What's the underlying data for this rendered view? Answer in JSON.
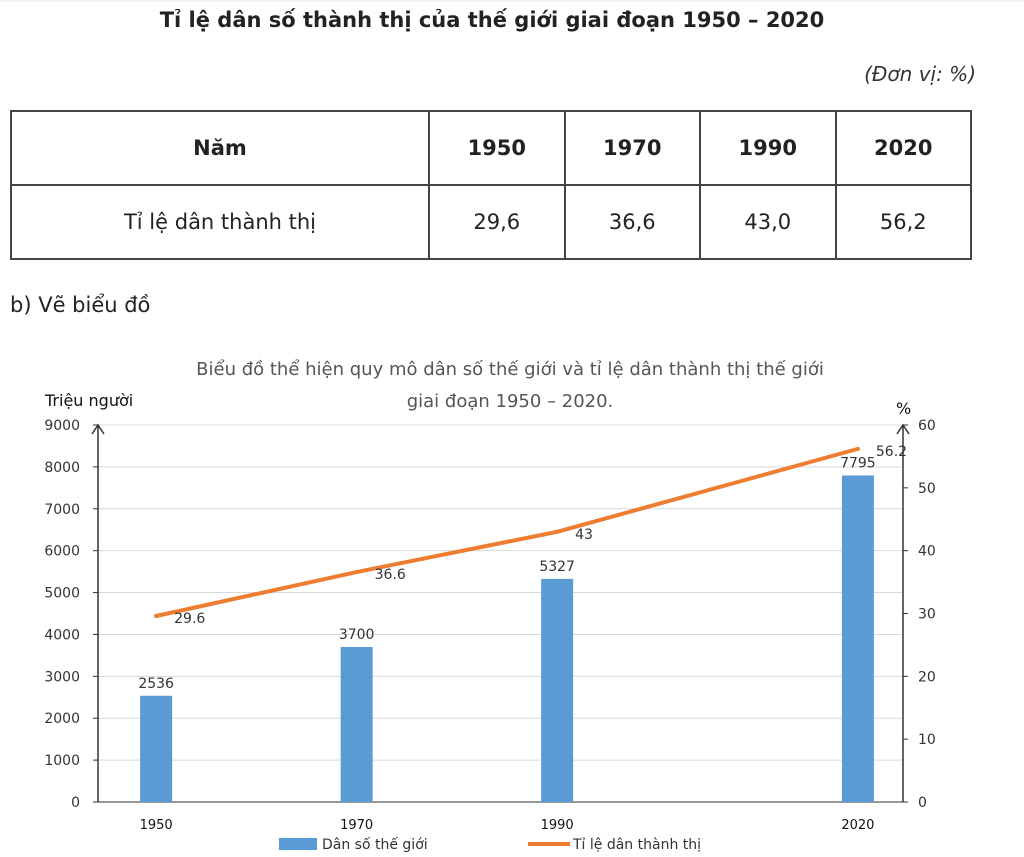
{
  "document": {
    "title": "Tỉ lệ dân số thành thị của thế giới giai đoạn 1950 – 2020",
    "unit": "(Đơn vị: %)",
    "subheading": "b) Vẽ biểu đồ"
  },
  "table": {
    "header": [
      "Năm",
      "1950",
      "1970",
      "1990",
      "2020"
    ],
    "row_label": "Tỉ lệ dân thành thị",
    "row_values": [
      "29,6",
      "36,6",
      "43,0",
      "56,2"
    ]
  },
  "chart_data": {
    "type": "bar",
    "title_lines": [
      "Biểu đồ thể hiện quy mô dân số thế giới và tỉ lệ dân thành thị thế giới",
      "giai đoạn 1950 – 2020."
    ],
    "categories": [
      "1950",
      "1970",
      "1990",
      "2020"
    ],
    "x_values": [
      1950,
      1970,
      1990,
      2020
    ],
    "series": [
      {
        "name": "Dân số thế giới",
        "type": "bar",
        "axis": "left",
        "values": [
          2536,
          3700,
          5327,
          7795
        ],
        "labels": [
          "2536",
          "3700",
          "5327",
          "7795"
        ],
        "color": "#5b9bd5"
      },
      {
        "name": "Tỉ lệ dân thành thị",
        "type": "line",
        "axis": "right",
        "values": [
          29.6,
          36.6,
          43,
          56.2
        ],
        "labels": [
          "29.6",
          "36.6",
          "43",
          "56.2"
        ],
        "color": "#ed7d31"
      }
    ],
    "ylabel_left": "Triệu người",
    "ylabel_right": "%",
    "ylim_left": [
      0,
      9000
    ],
    "yticks_left": [
      "0",
      "1000",
      "2000",
      "3000",
      "4000",
      "5000",
      "6000",
      "7000",
      "8000",
      "9000"
    ],
    "ylim_right": [
      0,
      60
    ],
    "yticks_right": [
      "0",
      "10",
      "20",
      "30",
      "40",
      "50",
      "60"
    ],
    "grid": true,
    "legend": "bottom-center"
  }
}
